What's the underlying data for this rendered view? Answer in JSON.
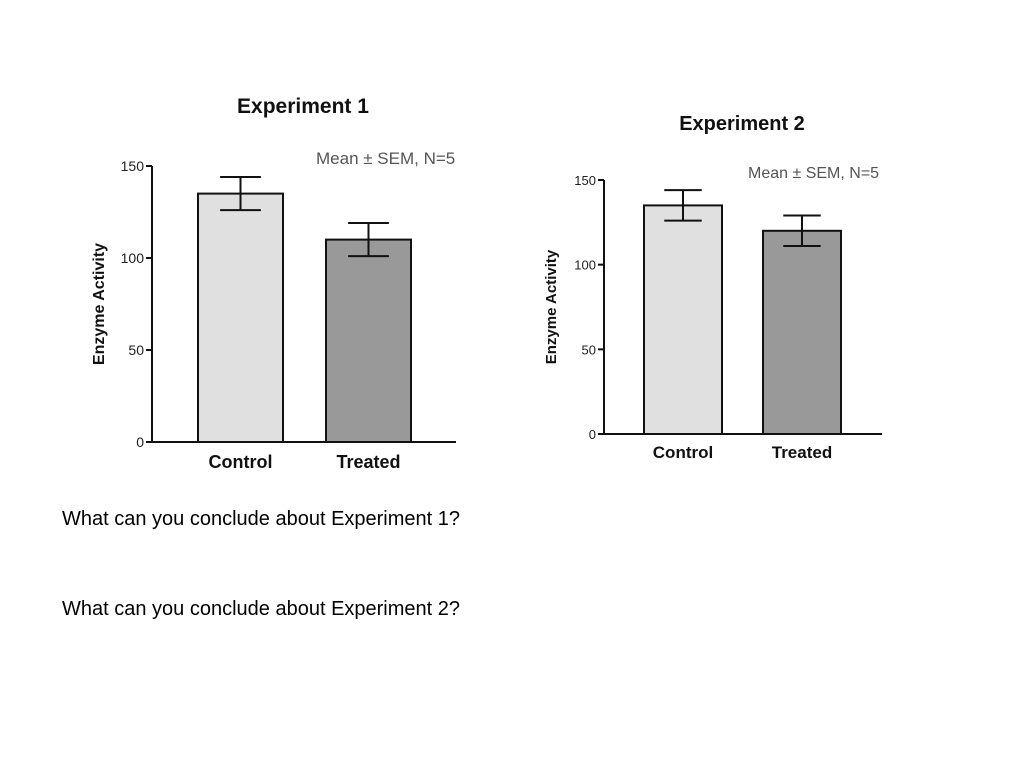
{
  "chart_data": [
    {
      "type": "bar",
      "title": "Experiment 1",
      "note": "Mean ± SEM, N=5",
      "ylabel": "Enzyme Activity",
      "xlabel": "",
      "categories": [
        "Control",
        "Treated"
      ],
      "values": [
        135,
        110
      ],
      "errors": [
        9,
        9
      ],
      "ylim": [
        0,
        150
      ],
      "yticks": [
        0,
        50,
        100,
        150
      ],
      "colors": [
        "#e0e0e0",
        "#999999"
      ],
      "grid": false
    },
    {
      "type": "bar",
      "title": "Experiment 2",
      "note": "Mean ± SEM, N=5",
      "ylabel": "Enzyme Activity",
      "xlabel": "",
      "categories": [
        "Control",
        "Treated"
      ],
      "values": [
        135,
        120
      ],
      "errors": [
        9,
        9
      ],
      "ylim": [
        0,
        150
      ],
      "yticks": [
        0,
        50,
        100,
        150
      ],
      "colors": [
        "#e0e0e0",
        "#999999"
      ],
      "grid": false
    }
  ],
  "questions": {
    "q1": "What can you conclude about Experiment 1?",
    "q2": "What can you conclude about Experiment 2?"
  }
}
